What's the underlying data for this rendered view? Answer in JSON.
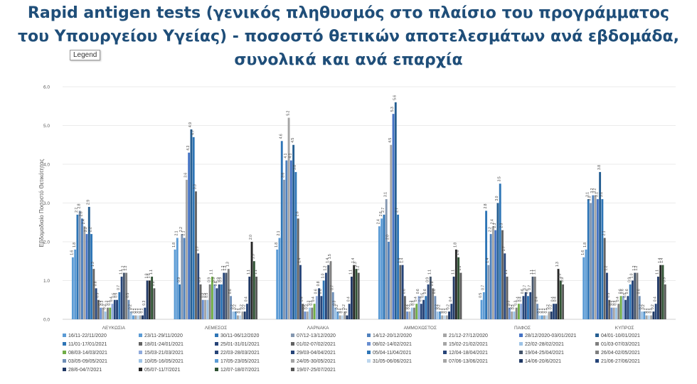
{
  "page": {
    "title": "Rapid antigen tests (γενικός πληθυσμός στο πλαίσιο του προγράμματος του Υπουργείου Υγείας) - ποσοστό θετικών αποτελεσμάτων ανά εβδομάδα, συνολικά και ανά επαρχία",
    "tooltip": "Legend"
  },
  "chart_data": {
    "type": "bar",
    "title": "Rapid antigen tests (γενικός πληθυσμός στο πλαίσιο του προγράμματος του Υπουργείου Υγείας) - ποσοστό θετικών αποτελεσμάτων ανά εβδομάδα, συνολικά και ανά επαρχία",
    "ylabel": "Εβδομαδιαίο Ποσοστό Θετικότητας",
    "xlabel": "",
    "ylim": [
      0,
      6
    ],
    "yticks": [
      "0.0",
      "1.0",
      "2.0",
      "3.0",
      "4.0",
      "5.0",
      "6.0"
    ],
    "grid": true,
    "legend_position": "bottom",
    "categories": [
      "ΛΕΥΚΩΣΙΑ",
      "ΛΕΜΕΣΟΣ",
      "ΛΑΡΝΑΚΑ",
      "ΑΜΜΟΧΩΣΤΟΣ",
      "ΠΑΦΟΣ",
      "ΚΥΠΡΟΣ"
    ],
    "series": [
      {
        "name": "16/11-22/11/2020",
        "color": "#5b9bd5",
        "values": [
          1.6,
          1.8,
          1.8,
          2.4,
          0.5,
          1.6
        ]
      },
      {
        "name": "23/11-29/11/2020",
        "color": "#5b9bd5",
        "values": [
          1.8,
          2.1,
          2.1,
          2.6,
          0.7,
          1.8
        ]
      },
      {
        "name": "30/11-06/12/2020",
        "color": "#2e75b6",
        "values": [
          2.7,
          0.9,
          4.6,
          2.7,
          2.8,
          3.1
        ]
      },
      {
        "name": "07/12-13/12/2020",
        "color": "#8497b0",
        "values": [
          2.8,
          2.2,
          3.6,
          3.1,
          1.4,
          3.0
        ]
      },
      {
        "name": "14/12-20/12/2020",
        "color": "#4f81bd",
        "values": [
          2.6,
          2.1,
          4.1,
          2.0,
          2.2,
          3.2
        ]
      },
      {
        "name": "21/12-27/12/2020",
        "color": "#a5a5a5",
        "values": [
          2.4,
          3.6,
          5.2,
          4.5,
          2.4,
          3.2
        ]
      },
      {
        "name": "28/12/2020-03/01/2021",
        "color": "#4472c4",
        "values": [
          2.2,
          4.3,
          4.1,
          5.3,
          2.3,
          3.1
        ]
      },
      {
        "name": "04/01-10/01/2021",
        "color": "#255e91",
        "values": [
          2.9,
          4.9,
          4.5,
          5.6,
          3.0,
          3.8
        ]
      },
      {
        "name": "11/01-17/01/2021",
        "color": "#2e75b6",
        "values": [
          2.2,
          4.7,
          3.8,
          2.7,
          3.5,
          3.1
        ]
      },
      {
        "name": "18/01-24/01/2021",
        "color": "#636363",
        "values": [
          1.3,
          3.3,
          2.6,
          1.4,
          2.3,
          2.1
        ]
      },
      {
        "name": "25/01-31/01/2021",
        "color": "#264478",
        "values": [
          0.8,
          1.7,
          1.4,
          1.4,
          1.7,
          1.2
        ]
      },
      {
        "name": "01/02-07/02/2021",
        "color": "#636363",
        "values": [
          0.5,
          0.9,
          0.4,
          0.6,
          1.1,
          0.5
        ]
      },
      {
        "name": "08/02-14/02/2021",
        "color": "#698ed0",
        "values": [
          0.3,
          0.5,
          0.2,
          0.2,
          0.3,
          0.3
        ]
      },
      {
        "name": "15/02-21/02/2021",
        "color": "#a5a5a5",
        "values": [
          0.3,
          0.5,
          0.2,
          0.2,
          0.2,
          0.3
        ]
      },
      {
        "name": "22/02-28/02/2021",
        "color": "#9dc3e6",
        "values": [
          0.2,
          0.5,
          0.3,
          0.3,
          0.2,
          0.3
        ]
      },
      {
        "name": "01/03-07/03/2021",
        "color": "#7f7f7f",
        "values": [
          0.3,
          0.9,
          0.3,
          0.3,
          0.3,
          0.4
        ]
      },
      {
        "name": "08/03-14/03/2021",
        "color": "#70ad47",
        "values": [
          0.3,
          1.1,
          0.4,
          0.4,
          0.4,
          0.6
        ]
      },
      {
        "name": "15/03-21/03/2021",
        "color": "#8faadc",
        "values": [
          0.4,
          0.9,
          0.6,
          0.6,
          0.4,
          0.6
        ]
      },
      {
        "name": "22/03-28/03/2021",
        "color": "#264478",
        "values": [
          0.5,
          0.8,
          0.8,
          0.4,
          0.6,
          0.5
        ]
      },
      {
        "name": "29/03-04/04/2021",
        "color": "#264478",
        "values": [
          0.5,
          0.9,
          0.6,
          0.5,
          0.7,
          0.6
        ]
      },
      {
        "name": "05/04-11/04/2021",
        "color": "#2e75b6",
        "values": [
          0.7,
          0.9,
          1.0,
          0.6,
          0.6,
          0.9
        ]
      },
      {
        "name": "12/04-18/04/2021",
        "color": "#264478",
        "values": [
          1.1,
          1.2,
          1.2,
          0.9,
          0.7,
          1.0
        ]
      },
      {
        "name": "19/04-25/04/2021",
        "color": "#44546a",
        "values": [
          1.2,
          1.2,
          1.4,
          1.1,
          1.1,
          1.2
        ]
      },
      {
        "name": "26/04-02/05/2021",
        "color": "#7f7f7f",
        "values": [
          1.2,
          1.3,
          1.5,
          0.8,
          1.1,
          1.2
        ]
      },
      {
        "name": "03/05-09/05/2021",
        "color": "#6f8fb7",
        "values": [
          0.5,
          0.6,
          0.7,
          0.6,
          0.4,
          0.6
        ]
      },
      {
        "name": "10/05-16/05/2021",
        "color": "#9dc3e6",
        "values": [
          0.2,
          0.2,
          0.3,
          0.2,
          0.1,
          0.2
        ]
      },
      {
        "name": "17/05-23/05/2021",
        "color": "#5b9bd5",
        "values": [
          0.1,
          0.2,
          0.2,
          0.2,
          0.1,
          0.2
        ]
      },
      {
        "name": "24/05-30/05/2021",
        "color": "#a5a5a5",
        "values": [
          0.1,
          0.1,
          0.1,
          0.1,
          0.1,
          0.1
        ]
      },
      {
        "name": "31/05-06/06/2021",
        "color": "#bdd7ee",
        "values": [
          0.1,
          0.1,
          0.1,
          0.1,
          0.1,
          0.1
        ]
      },
      {
        "name": "07/06-13/06/2021",
        "color": "#a5a5a5",
        "values": [
          0.1,
          0.2,
          0.2,
          0.1,
          0.2,
          0.1
        ]
      },
      {
        "name": "14/06-20/6/2021",
        "color": "#1f3864",
        "values": [
          0.1,
          0.2,
          0.1,
          0.2,
          0.2,
          0.2
        ]
      },
      {
        "name": "21/06-27/06/2021",
        "color": "#264478",
        "values": [
          0.3,
          0.4,
          0.4,
          0.4,
          0.4,
          0.4
        ]
      },
      {
        "name": "28/6-04/7/2021",
        "color": "#203864",
        "values": [
          1.0,
          1.1,
          1.1,
          1.1,
          0.4,
          1.1
        ]
      },
      {
        "name": "05/07-11/7/2021",
        "color": "#262626",
        "values": [
          1.0,
          2.0,
          1.4,
          1.8,
          1.3,
          1.4
        ]
      },
      {
        "name": "12/07-18/07/2021",
        "color": "#2f5233",
        "values": [
          1.1,
          1.5,
          1.3,
          1.6,
          1.0,
          1.4
        ]
      },
      {
        "name": "19/07-25/07/2021",
        "color": "#595959",
        "values": [
          0.8,
          1.1,
          1.2,
          1.2,
          0.9,
          0.9
        ]
      }
    ]
  }
}
